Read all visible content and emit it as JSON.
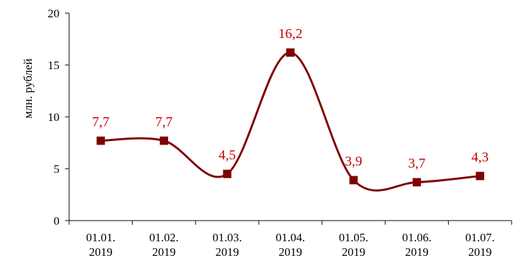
{
  "chart_data": {
    "type": "line",
    "title": "",
    "xlabel": "",
    "ylabel": "млн. рублей",
    "ylim": [
      0,
      20
    ],
    "yticks": [
      0,
      5,
      10,
      15,
      20
    ],
    "categories": [
      [
        "01.01.",
        "2019"
      ],
      [
        "01.02.",
        "2019"
      ],
      [
        "01.03.",
        "2019"
      ],
      [
        "01.04.",
        "2019"
      ],
      [
        "01.05.",
        "2019"
      ],
      [
        "01.06.",
        "2019"
      ],
      [
        "01.07.",
        "2019"
      ]
    ],
    "series": [
      {
        "values": [
          7.7,
          7.7,
          4.5,
          16.2,
          3.9,
          3.7,
          4.3
        ],
        "data_labels": [
          "7,7",
          "7,7",
          "4,5",
          "16,2",
          "3,9",
          "3,7",
          "4,3"
        ],
        "line_color": "#7f0000",
        "marker_color": "#7f0000",
        "label_color": "#c00000",
        "smooth": true
      }
    ],
    "grid": false,
    "legend": "none"
  }
}
